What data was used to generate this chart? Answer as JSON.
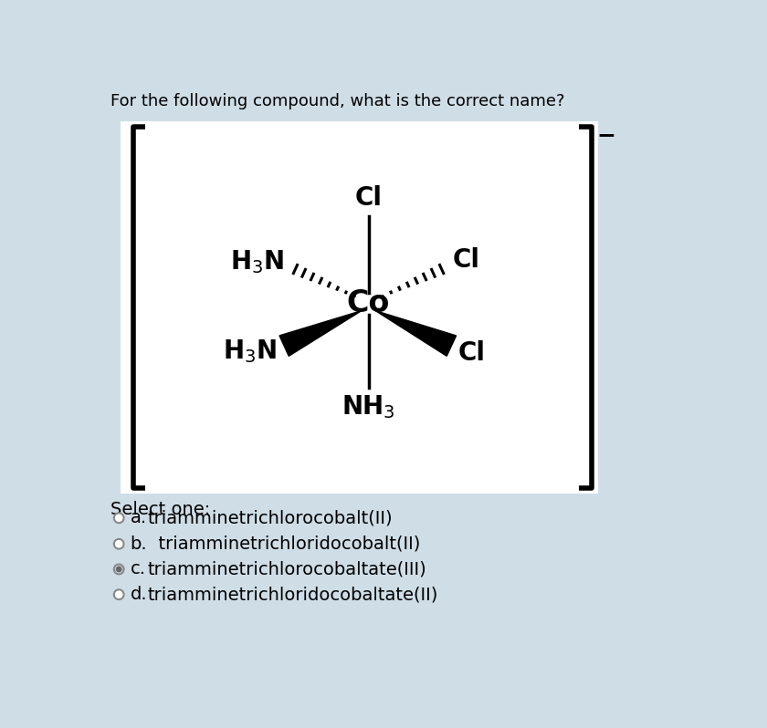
{
  "title": "For the following compound, what is the correct name?",
  "background_color": "#cfdde6",
  "box_bg": "#ffffff",
  "text_color": "#000000",
  "question_fontsize": 13,
  "co_label_fontsize": 24,
  "ligand_fontsize": 20,
  "answer_fontsize": 14,
  "options": [
    {
      "label": "a.",
      "text": "triamminetrichlorocobalt(II)",
      "selected": false
    },
    {
      "label": "b.",
      "text": "  triamminetrichloridocobalt(II)",
      "selected": false
    },
    {
      "label": "c.",
      "text": "triamminetrichlorocobaltate(III)",
      "selected": true
    },
    {
      "label": "d.",
      "text": "triamminetrichloridocobaltate(II)",
      "selected": false
    }
  ],
  "select_one_text": "Select one:",
  "bracket_color": "#000000",
  "charge_text": "−"
}
